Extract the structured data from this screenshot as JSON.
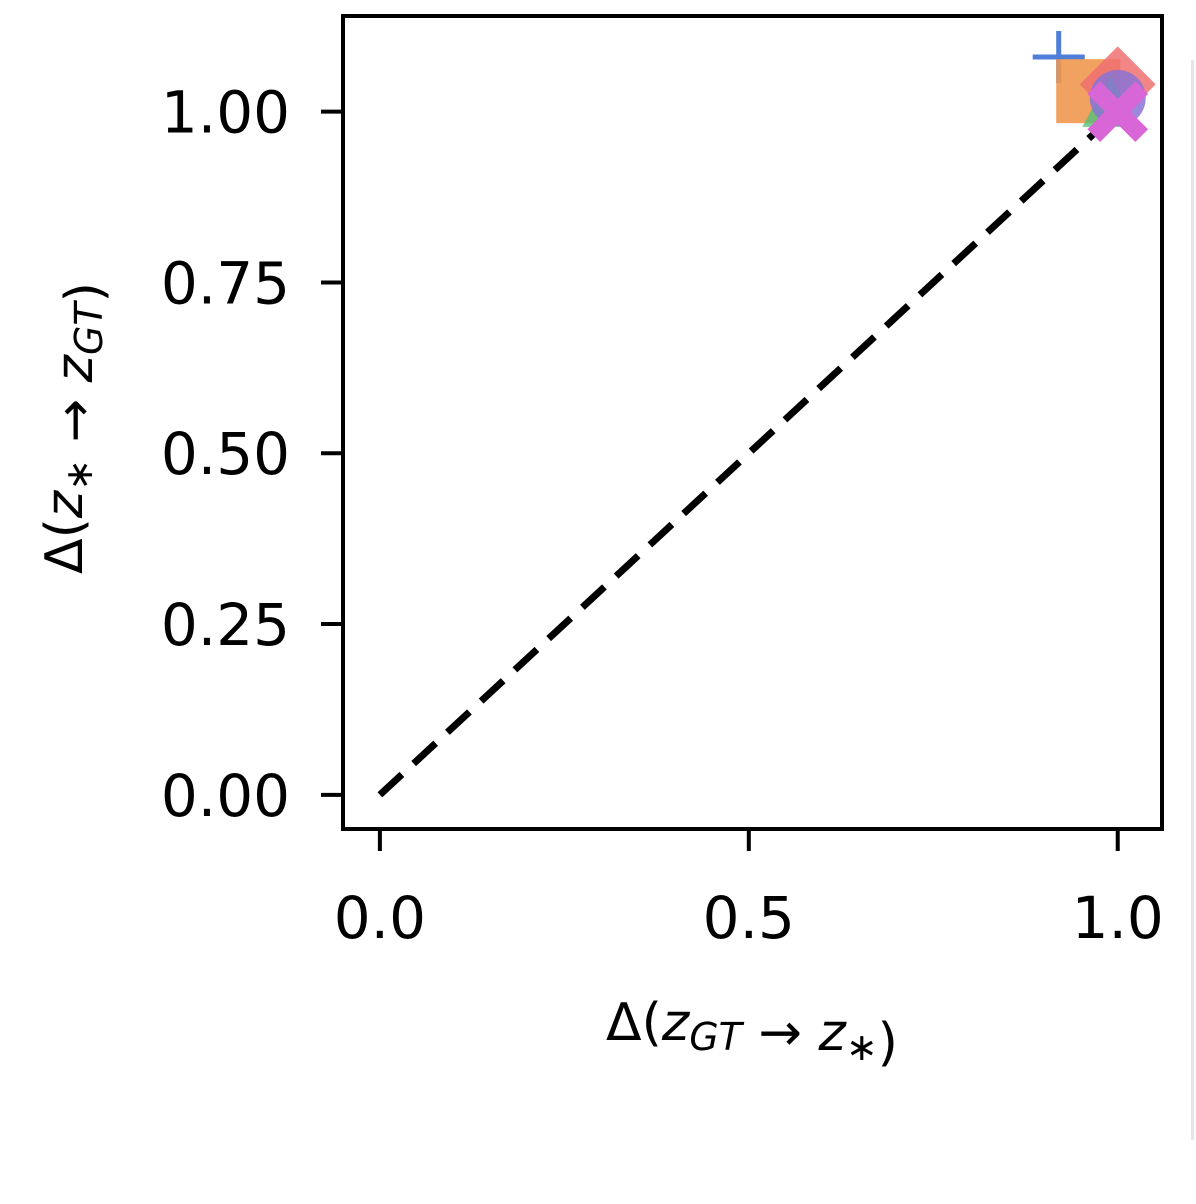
{
  "chart_data": {
    "type": "scatter",
    "title": "",
    "xlabel": "Δ(z_GT → z_*)",
    "ylabel": "Δ(z_* → z_GT)",
    "xlim": [
      -0.05,
      1.06
    ],
    "ylim": [
      -0.05,
      1.14
    ],
    "x_ticks": [
      "0.0",
      "0.5",
      "1.0"
    ],
    "x_tick_values": [
      0.0,
      0.5,
      1.0
    ],
    "y_ticks": [
      "0.00",
      "0.25",
      "0.50",
      "0.75",
      "1.00"
    ],
    "y_tick_values": [
      0.0,
      0.25,
      0.5,
      0.75,
      1.0
    ],
    "grid": false,
    "reference_line": {
      "style": "dashed",
      "color": "#000000",
      "x": [
        0,
        1
      ],
      "y": [
        0,
        1
      ]
    },
    "series": [
      {
        "marker": "plus",
        "color": "#4f7fd9",
        "points": [
          [
            0.92,
            1.08
          ]
        ]
      },
      {
        "marker": "square",
        "color": "#f0974f",
        "points": [
          [
            0.96,
            1.03
          ]
        ]
      },
      {
        "marker": "diamond",
        "color": "#f07070",
        "points": [
          [
            1.0,
            1.04
          ]
        ]
      },
      {
        "marker": "triangle",
        "color": "#55c077",
        "points": [
          [
            0.99,
            1.01
          ]
        ]
      },
      {
        "marker": "circle",
        "color": "#8a73d6",
        "points": [
          [
            1.0,
            1.02
          ]
        ]
      },
      {
        "marker": "x",
        "color": "#d966d6",
        "points": [
          [
            1.0,
            1.0
          ]
        ]
      }
    ]
  }
}
